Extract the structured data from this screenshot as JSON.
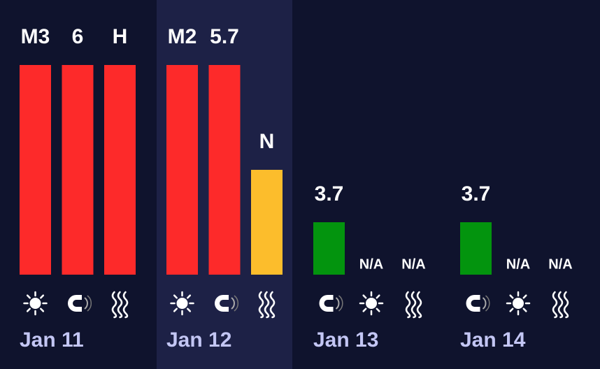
{
  "max_level": 4,
  "days": [
    {
      "date": "Jan 11",
      "highlight": false,
      "items": [
        {
          "icon": "sun",
          "label": "M3",
          "level": 4,
          "color": "#fd2a2a"
        },
        {
          "icon": "magnet",
          "label": "6",
          "level": 4,
          "color": "#fd2a2a"
        },
        {
          "icon": "waves",
          "label": "H",
          "level": 4,
          "color": "#fd2a2a"
        }
      ]
    },
    {
      "date": "Jan 12",
      "highlight": true,
      "items": [
        {
          "icon": "sun",
          "label": "M2",
          "level": 4,
          "color": "#fd2a2a"
        },
        {
          "icon": "magnet",
          "label": "5.7",
          "level": 4,
          "color": "#fd2a2a"
        },
        {
          "icon": "waves",
          "label": "N",
          "level": 2,
          "color": "#fcbd2c"
        }
      ]
    },
    {
      "date": "Jan 13",
      "highlight": false,
      "items": [
        {
          "icon": "magnet",
          "label": "3.7",
          "level": 1,
          "color": "#03940e"
        },
        {
          "icon": "sun",
          "label": "N/A",
          "level": null,
          "color": null
        },
        {
          "icon": "waves",
          "label": "N/A",
          "level": null,
          "color": null
        }
      ]
    },
    {
      "date": "Jan 14",
      "highlight": false,
      "items": [
        {
          "icon": "magnet",
          "label": "3.7",
          "level": 1,
          "color": "#03940e"
        },
        {
          "icon": "sun",
          "label": "N/A",
          "level": null,
          "color": null
        },
        {
          "icon": "waves",
          "label": "N/A",
          "level": null,
          "color": null
        }
      ]
    }
  ]
}
